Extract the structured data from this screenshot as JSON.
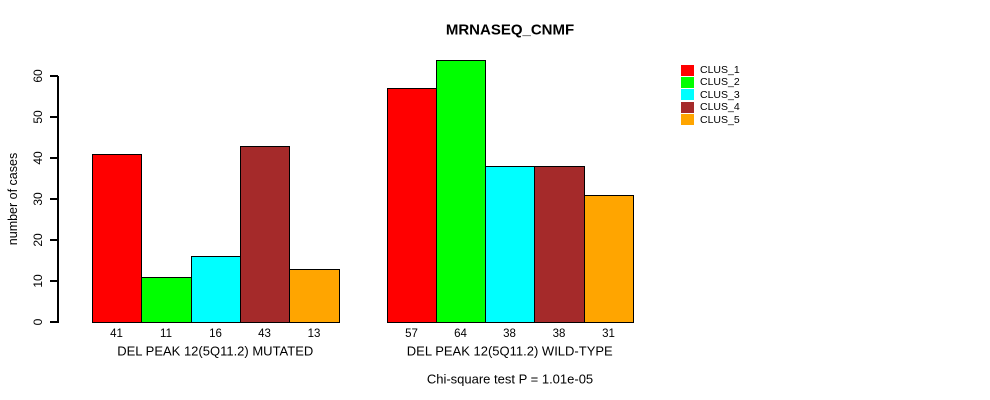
{
  "title": "MRNASEQ_CNMF",
  "ylabel": "number of cases",
  "annotation": "Chi-square test P = 1.01e-05",
  "legend": {
    "items": [
      {
        "label": "CLUS_1",
        "color": "#FF0000"
      },
      {
        "label": "CLUS_2",
        "color": "#00FF00"
      },
      {
        "label": "CLUS_3",
        "color": "#00FFFF"
      },
      {
        "label": "CLUS_4",
        "color": "#A52A2A"
      },
      {
        "label": "CLUS_5",
        "color": "#FFA500"
      }
    ]
  },
  "chart_data": {
    "type": "bar",
    "title": "MRNASEQ_CNMF",
    "xlabel": "",
    "ylabel": "number of cases",
    "ylim": [
      0,
      65
    ],
    "yticks": [
      0,
      10,
      20,
      30,
      40,
      50,
      60
    ],
    "grid": false,
    "legend_position": "right",
    "bar_value_labels": true,
    "series_names": [
      "CLUS_1",
      "CLUS_2",
      "CLUS_3",
      "CLUS_4",
      "CLUS_5"
    ],
    "series_colors": [
      "#FF0000",
      "#00FF00",
      "#00FFFF",
      "#A52A2A",
      "#FFA500"
    ],
    "groups": [
      {
        "label": "DEL PEAK 12(5Q11.2) MUTATED",
        "values": [
          41,
          11,
          16,
          43,
          13
        ]
      },
      {
        "label": "DEL PEAK 12(5Q11.2) WILD-TYPE",
        "values": [
          57,
          64,
          38,
          38,
          31
        ]
      }
    ],
    "annotation": "Chi-square test P = 1.01e-05"
  }
}
